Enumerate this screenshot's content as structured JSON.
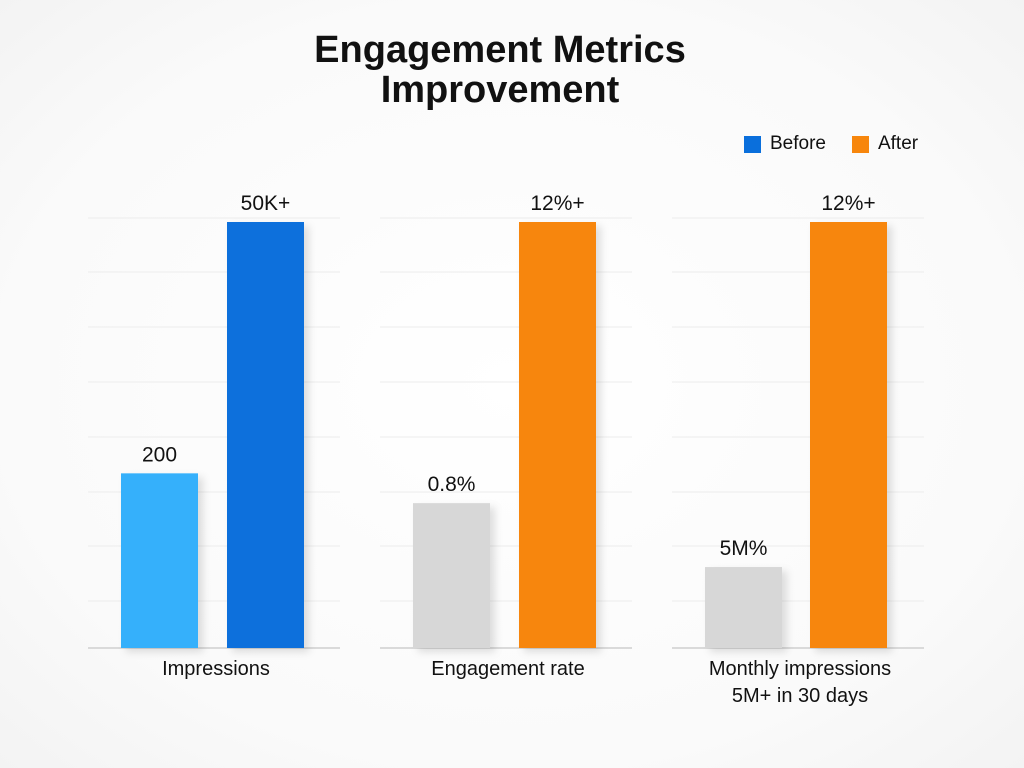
{
  "title_lines": [
    "Engagement Metrics",
    "Improvement"
  ],
  "legend": [
    {
      "name": "Before",
      "color": "#0a6fdc"
    },
    {
      "name": "After",
      "color": "#f7860c"
    }
  ],
  "chart_data": {
    "type": "bar",
    "title": "Engagement Metrics Improvement",
    "legend_placement": "top-right",
    "grid": true,
    "scale": "relative (per panel, values shown only by data labels)",
    "ylim": [
      0,
      100
    ],
    "panels": [
      {
        "category": "Impressions",
        "category_lines": [
          "Impressions"
        ],
        "bars": [
          {
            "series": "Before",
            "label": "200",
            "value": 41,
            "color": "#36b0fb"
          },
          {
            "series": "After",
            "label": "50K+",
            "value": 100,
            "color": "#0a6fdc"
          }
        ]
      },
      {
        "category": "Engagement rate",
        "category_lines": [
          "Engagement rate"
        ],
        "bars": [
          {
            "series": "Before",
            "label": "0.8%",
            "value": 34,
            "color": "#d7d7d7"
          },
          {
            "series": "After",
            "label": "12%+",
            "value": 100,
            "color": "#f7860c"
          }
        ]
      },
      {
        "category": "Monthly impressions 5M+ in 30 days",
        "category_lines": [
          "Monthly impressions",
          "5M+ in 30 days"
        ],
        "bars": [
          {
            "series": "Before",
            "label": "5M%",
            "value": 19,
            "color": "#d7d7d7"
          },
          {
            "series": "After",
            "label": "12%+",
            "value": 100,
            "color": "#f7860c"
          }
        ]
      }
    ]
  }
}
